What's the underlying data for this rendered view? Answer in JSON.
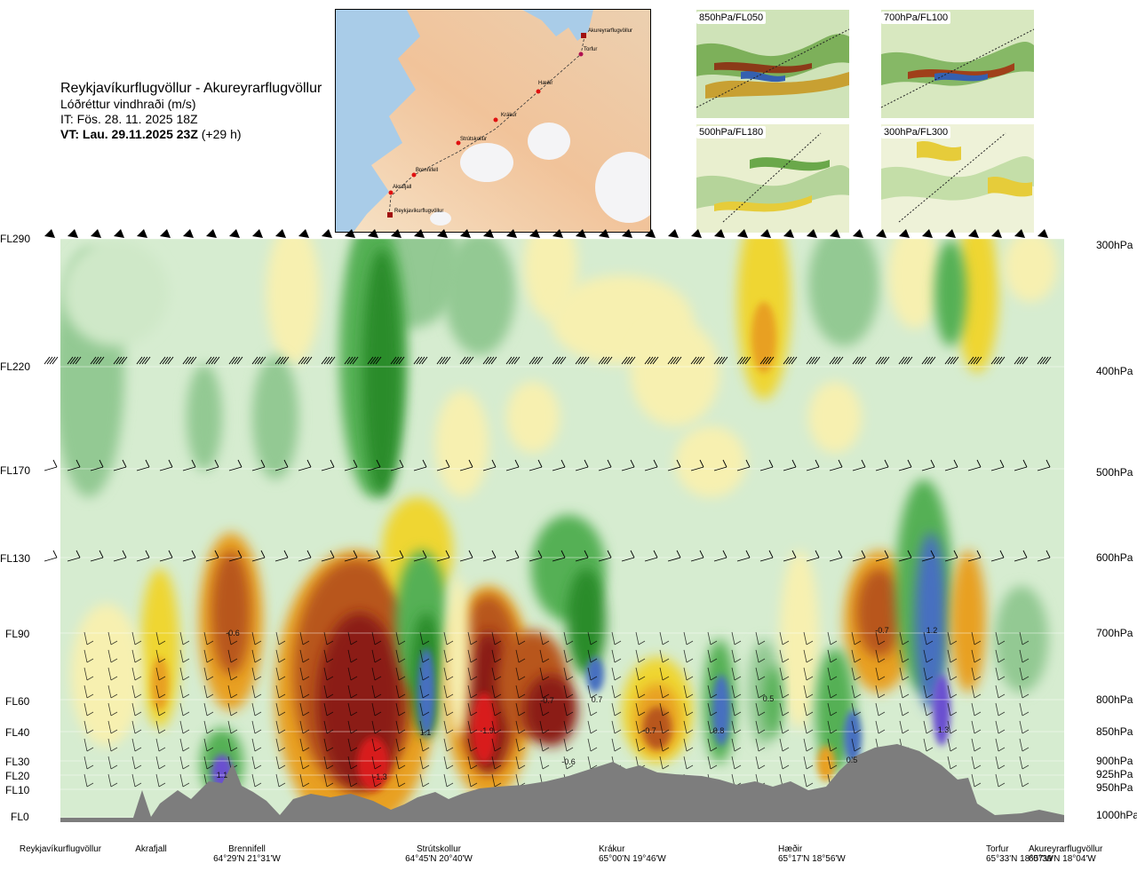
{
  "header": {
    "route": "Reykjavíkurflugvöllur - Akureyrarflugvöllur",
    "variable": "Lóðréttur vindhraði (m/s)",
    "init_time": "IT: Fös. 28. 11. 2025 18Z",
    "valid_prefix": "VT: Lau. 29.11.2025 23Z",
    "valid_suffix": "(+29 h)"
  },
  "map": {
    "points": [
      "Akureyrarflugvöllur",
      "Torfur",
      "Hæðir",
      "Krákur",
      "Strútskollur",
      "Brennifell",
      "Akrafjall",
      "Reykjavíkurflugvöllur"
    ]
  },
  "mini_maps": [
    {
      "label": "850hPa/FL050"
    },
    {
      "label": "700hPa/FL100"
    },
    {
      "label": "500hPa/FL180"
    },
    {
      "label": "300hPa/FL300"
    }
  ],
  "chart_data": {
    "type": "heatmap",
    "title": "Reykjavíkurflugvöllur - Akureyrarflugvöllur",
    "variable": "Lóðréttur vindhraði (m/s)",
    "flight_levels": [
      {
        "fl": "FL290",
        "hpa": "300hPa"
      },
      {
        "fl": "FL220",
        "hpa": "400hPa"
      },
      {
        "fl": "FL170",
        "hpa": "500hPa"
      },
      {
        "fl": "FL130",
        "hpa": "600hPa"
      },
      {
        "fl": "FL90",
        "hpa": "700hPa"
      },
      {
        "fl": "FL60",
        "hpa": "800hPa"
      },
      {
        "fl": "FL40",
        "hpa": "850hPa"
      },
      {
        "fl": "FL30",
        "hpa": "900hPa"
      },
      {
        "fl": "FL20",
        "hpa": "925hPa"
      },
      {
        "fl": "FL10",
        "hpa": "950hPa"
      },
      {
        "fl": "FL0",
        "hpa": "1000hPa"
      }
    ],
    "locations": [
      {
        "name": "Reykjavíkurflugvöllur",
        "coord": ""
      },
      {
        "name": "Akrafjall",
        "coord": ""
      },
      {
        "name": "Brennifell",
        "coord": "64°29'N 21°31'W"
      },
      {
        "name": "Strútskollur",
        "coord": "64°45'N 20°40'W"
      },
      {
        "name": "Krákur",
        "coord": "65°00'N 19°46'W"
      },
      {
        "name": "Hæðir",
        "coord": "65°17'N 18°56'W"
      },
      {
        "name": "Torfur",
        "coord": "65°33'N 18°07'W"
      },
      {
        "name": "Akureyrarflugvöllur",
        "coord": "65°39'N 18°04'W"
      }
    ],
    "value_labels": [
      "-0.6",
      "1.1",
      "-1.3",
      "1.1",
      "-1.9",
      "-0.7",
      "-0.6",
      "0.7",
      "-0.7",
      "0.8",
      "0.5",
      "0.5",
      "-0.7",
      "1.2",
      "1.3"
    ],
    "colors": {
      "dark_green": "#2a8c2a",
      "green": "#55b055",
      "mid_green": "#93c993",
      "light_green": "#cfe8c8",
      "pale_yellow": "#f7f0b0",
      "yellow": "#efd630",
      "orange": "#e8a020",
      "brown": "#b8561a",
      "dark_red": "#8b1a14",
      "red": "#d81a1a",
      "blue": "#4670c0",
      "violet": "#6a4fd0",
      "terrain": "#7d7d7d"
    }
  }
}
